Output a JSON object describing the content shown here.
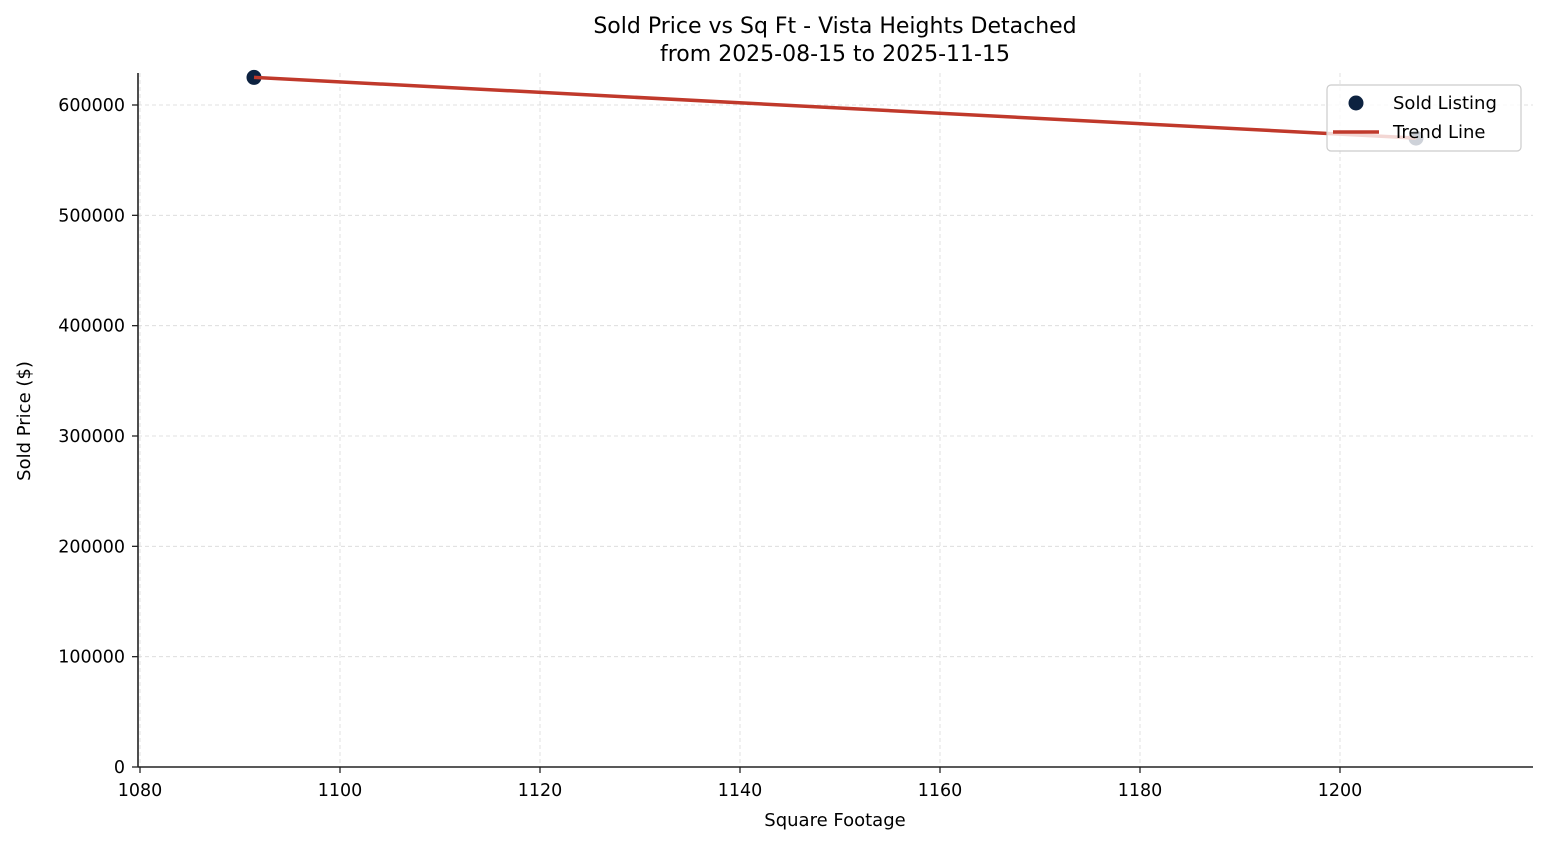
{
  "chart_data": {
    "type": "scatter",
    "title": "Sold Price vs Sq Ft - Vista Heights Detached",
    "subtitle": "from 2025-08-15 to 2025-11-15",
    "xlabel": "Square Footage",
    "ylabel": "Sold Price ($)",
    "xlim": [
      1079.8,
      1219.3
    ],
    "ylim": [
      0,
      629000
    ],
    "xticks": [
      1080,
      1100,
      1120,
      1140,
      1160,
      1180,
      1200
    ],
    "xtick_labels": [
      "1080",
      "1100",
      "1120",
      "1140",
      "1160",
      "1180",
      "1200"
    ],
    "yticks": [
      0,
      100000,
      200000,
      300000,
      400000,
      500000,
      600000
    ],
    "ytick_labels": [
      "0",
      "100000",
      "200000",
      "300000",
      "400000",
      "500000",
      "600000"
    ],
    "grid": true,
    "legend_position": "upper right",
    "series": [
      {
        "name": "Sold Listing",
        "kind": "scatter",
        "color": "#0d2240",
        "points": [
          {
            "x": 1091.4,
            "y": 625000
          },
          {
            "x": 1207.6,
            "y": 570000
          }
        ]
      },
      {
        "name": "Trend Line",
        "kind": "line",
        "color": "#c0392b",
        "points": [
          {
            "x": 1091.4,
            "y": 625000
          },
          {
            "x": 1207.6,
            "y": 570000
          }
        ]
      }
    ]
  },
  "legend": {
    "items": [
      {
        "label": "Sold Listing"
      },
      {
        "label": "Trend Line"
      }
    ]
  }
}
